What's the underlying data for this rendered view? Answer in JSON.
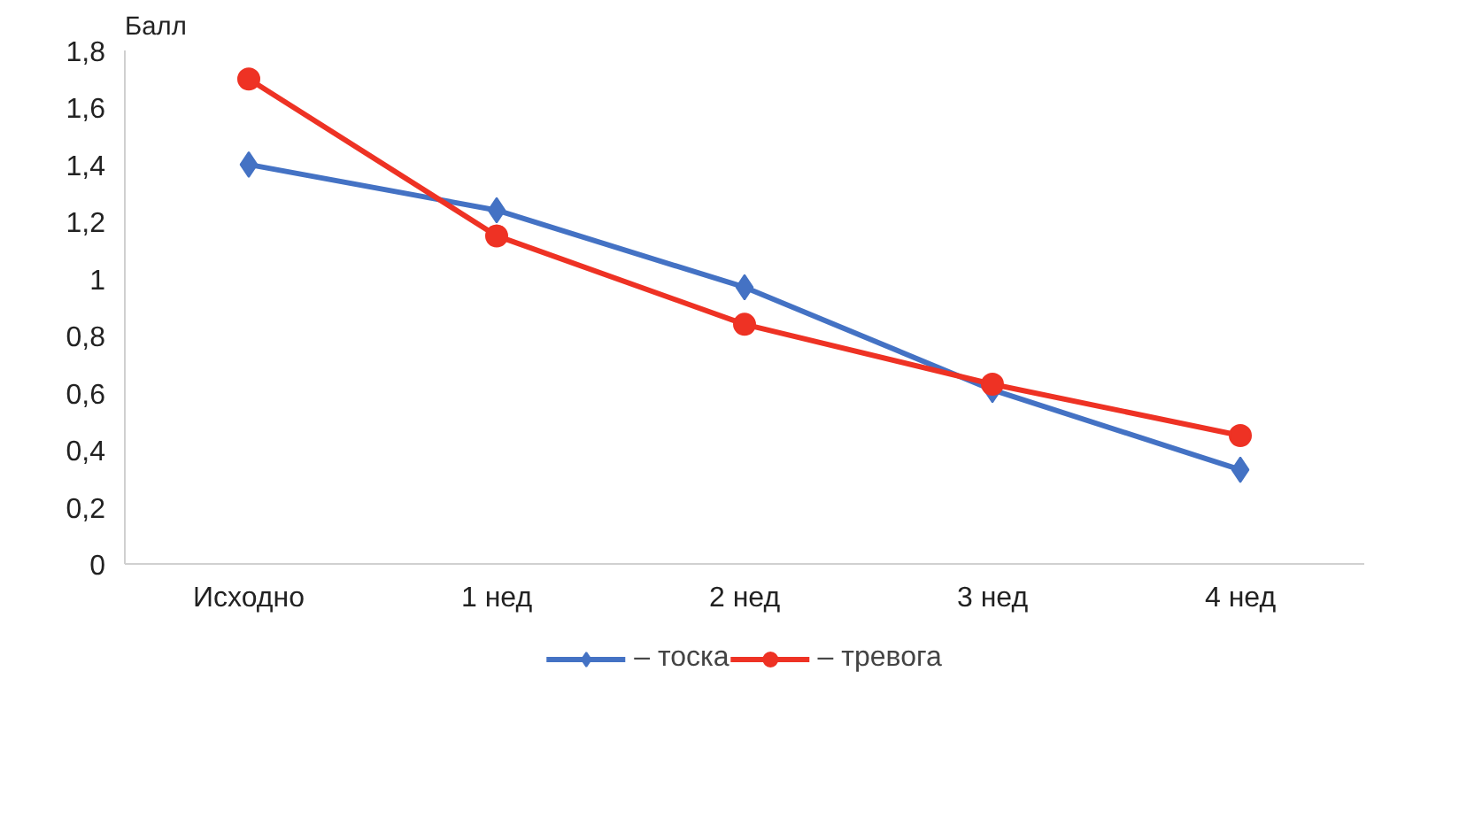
{
  "chart_data": {
    "type": "line",
    "ylabel": "Балл",
    "categories": [
      "Исходно",
      "1 нед",
      "2 нед",
      "3 нед",
      "4 нед"
    ],
    "series": [
      {
        "name": "– тоска",
        "color": "#4472c4",
        "marker": "diamond",
        "values": [
          1.4,
          1.24,
          0.97,
          0.61,
          0.33
        ]
      },
      {
        "name": "– тревога",
        "color": "#ee3224",
        "marker": "circle",
        "values": [
          1.7,
          1.15,
          0.84,
          0.63,
          0.45
        ]
      }
    ],
    "ylim": [
      0,
      1.8
    ],
    "yticks": [
      0,
      {
        "value": 0.2,
        "label": "0,2"
      },
      {
        "value": 0.4,
        "label": "0,4"
      },
      {
        "value": 0.6,
        "label": "0,6"
      },
      {
        "value": 0.8,
        "label": "0,8"
      },
      1,
      {
        "value": 1.2,
        "label": "1,2"
      },
      {
        "value": 1.4,
        "label": "1,4"
      },
      {
        "value": 1.6,
        "label": "1,6"
      },
      {
        "value": 1.8,
        "label": "1,8"
      }
    ],
    "grid": false,
    "legend": "bottom",
    "line_style": "solid"
  }
}
